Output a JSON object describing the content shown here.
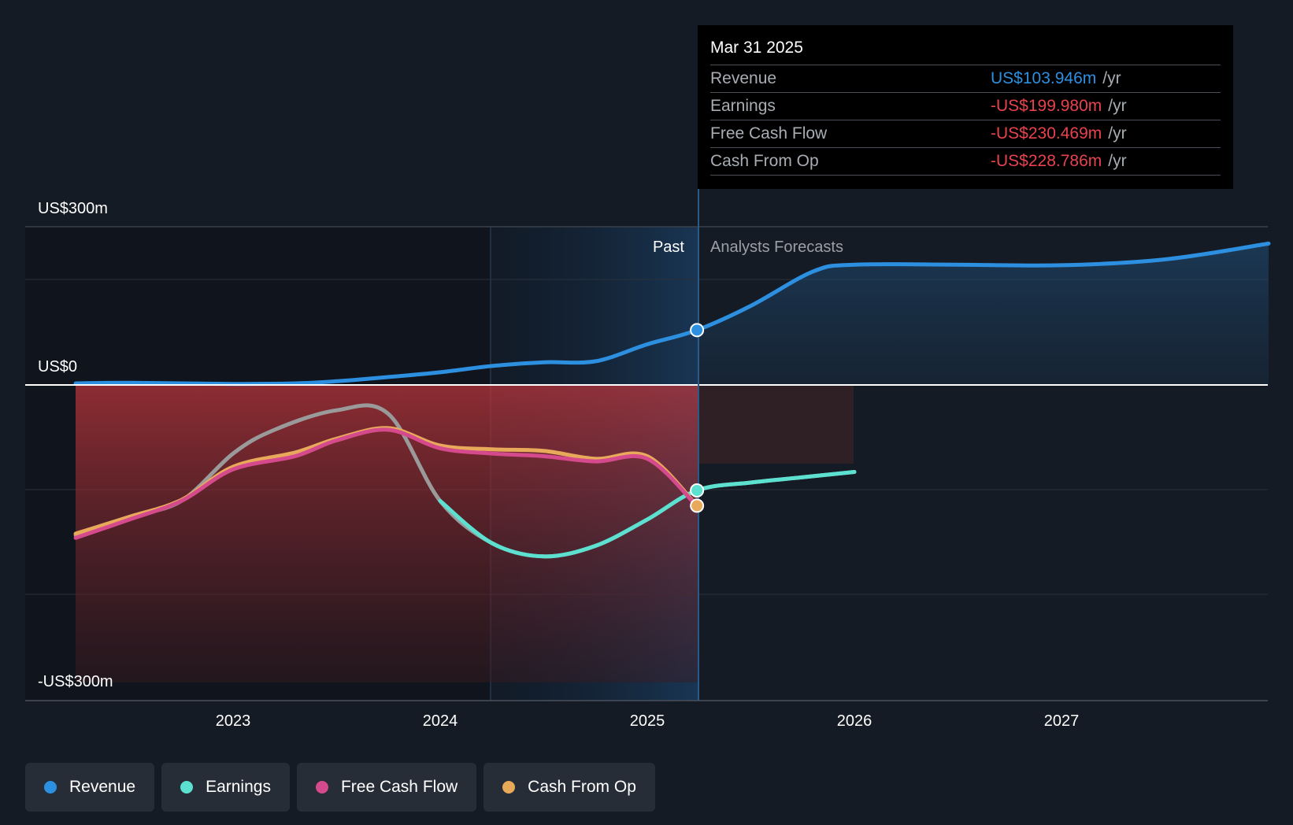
{
  "chart_data": {
    "type": "line",
    "title": "",
    "y_axis": {
      "top_label": "US$300m",
      "zero_label": "US$0",
      "bottom_label": "-US$300m",
      "ylim": [
        -300,
        300
      ]
    },
    "x_axis": {
      "ticks": [
        "2023",
        "2024",
        "2025",
        "2026",
        "2027"
      ]
    },
    "period_labels": {
      "past": "Past",
      "forecast": "Analysts Forecasts"
    },
    "series": [
      {
        "name": "Revenue",
        "color": "#2d8fe0",
        "x": [
          2022.24,
          2022.5,
          2023.0,
          2023.3,
          2023.5,
          2023.75,
          2024.0,
          2024.25,
          2024.5,
          2024.75,
          2025.0,
          2025.24,
          2025.5,
          2025.8,
          2026.0,
          2026.5,
          2027.0,
          2027.5,
          2028.0
        ],
        "y": [
          3,
          4,
          2,
          3,
          7,
          15,
          24,
          36,
          43,
          45,
          77,
          104,
          150,
          215,
          228,
          228,
          227,
          238,
          268
        ]
      },
      {
        "name": "Earnings",
        "color": "#5ce1d0",
        "x": [
          2022.24,
          2022.5,
          2022.75,
          2023.0,
          2023.2,
          2023.5,
          2023.75,
          2024.0,
          2024.25,
          2024.5,
          2024.75,
          2025.0,
          2025.24,
          2025.5,
          2025.75,
          2026.0
        ],
        "y": [
          -285,
          -250,
          -220,
          -130,
          -85,
          -48,
          -55,
          -220,
          -300,
          -325,
          -305,
          -255,
          -200,
          -185,
          -175,
          -165
        ]
      },
      {
        "name": "Free Cash Flow",
        "color": "#d44a8c",
        "x": [
          2022.24,
          2022.5,
          2022.75,
          2023.0,
          2023.3,
          2023.5,
          2023.75,
          2024.0,
          2024.25,
          2024.5,
          2024.75,
          2025.0,
          2025.24
        ],
        "y": [
          -290,
          -255,
          -220,
          -160,
          -135,
          -105,
          -85,
          -120,
          -130,
          -135,
          -145,
          -140,
          -230
        ]
      },
      {
        "name": "Cash From Op",
        "color": "#e9a95b",
        "x": [
          2022.24,
          2022.5,
          2022.75,
          2023.0,
          2023.3,
          2023.5,
          2023.75,
          2024.0,
          2024.25,
          2024.5,
          2024.75,
          2025.0,
          2025.24
        ],
        "y": [
          -282,
          -250,
          -218,
          -155,
          -128,
          -102,
          -82,
          -115,
          -122,
          -125,
          -140,
          -135,
          -229
        ]
      }
    ],
    "grid": true
  },
  "tooltip": {
    "date": "Mar 31 2025",
    "rows": [
      {
        "label": "Revenue",
        "value": "US$103.946m",
        "unit": "/yr",
        "color": "#2d8fe0"
      },
      {
        "label": "Earnings",
        "value": "-US$199.980m",
        "unit": "/yr",
        "color": "#e8424e"
      },
      {
        "label": "Free Cash Flow",
        "value": "-US$230.469m",
        "unit": "/yr",
        "color": "#e8424e"
      },
      {
        "label": "Cash From Op",
        "value": "-US$228.786m",
        "unit": "/yr",
        "color": "#e8424e"
      }
    ]
  },
  "legend": [
    {
      "label": "Revenue",
      "color": "#2d8fe0"
    },
    {
      "label": "Earnings",
      "color": "#5ce1d0"
    },
    {
      "label": "Free Cash Flow",
      "color": "#d44a8c"
    },
    {
      "label": "Cash From Op",
      "color": "#e9a95b"
    }
  ]
}
